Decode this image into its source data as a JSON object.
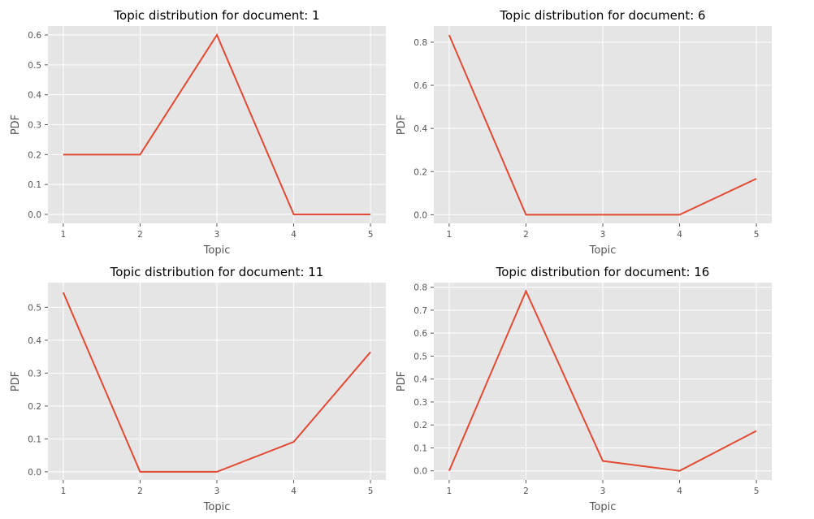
{
  "chart_data": [
    {
      "type": "line",
      "title": "Topic distribution for document: 1",
      "xlabel": "Topic",
      "ylabel": "PDF",
      "x": [
        1,
        2,
        3,
        4,
        5
      ],
      "xticks": [
        "1",
        "2",
        "3",
        "4",
        "5"
      ],
      "ylim": [
        -0.03,
        0.63
      ],
      "yticks": [
        "0.0",
        "0.1",
        "0.2",
        "0.3",
        "0.4",
        "0.5",
        "0.6"
      ],
      "series": [
        {
          "values": [
            0.2,
            0.2,
            0.6,
            0.0,
            0.0
          ]
        }
      ],
      "grid": true,
      "line_color": "#E24A33",
      "background": "#E5E5E5"
    },
    {
      "type": "line",
      "title": "Topic distribution for document: 6",
      "xlabel": "Topic",
      "ylabel": "PDF",
      "x": [
        1,
        2,
        3,
        4,
        5
      ],
      "xticks": [
        "1",
        "2",
        "3",
        "4",
        "5"
      ],
      "ylim": [
        -0.04,
        0.875
      ],
      "yticks": [
        "0.0",
        "0.2",
        "0.4",
        "0.6",
        "0.8"
      ],
      "series": [
        {
          "values": [
            0.833,
            0.0,
            0.0,
            0.0,
            0.167
          ]
        }
      ],
      "grid": true,
      "line_color": "#E24A33",
      "background": "#E5E5E5"
    },
    {
      "type": "line",
      "title": "Topic distribution for document: 11",
      "xlabel": "Topic",
      "ylabel": "PDF",
      "x": [
        1,
        2,
        3,
        4,
        5
      ],
      "xticks": [
        "1",
        "2",
        "3",
        "4",
        "5"
      ],
      "ylim": [
        -0.025,
        0.575
      ],
      "yticks": [
        "0.0",
        "0.1",
        "0.2",
        "0.3",
        "0.4",
        "0.5"
      ],
      "series": [
        {
          "values": [
            0.545,
            0.0,
            0.0,
            0.091,
            0.364
          ]
        }
      ],
      "grid": true,
      "line_color": "#E24A33",
      "background": "#E5E5E5"
    },
    {
      "type": "line",
      "title": "Topic distribution for document: 16",
      "xlabel": "Topic",
      "ylabel": "PDF",
      "x": [
        1,
        2,
        3,
        4,
        5
      ],
      "xticks": [
        "1",
        "2",
        "3",
        "4",
        "5"
      ],
      "ylim": [
        -0.04,
        0.82
      ],
      "yticks": [
        "0.0",
        "0.1",
        "0.2",
        "0.3",
        "0.4",
        "0.5",
        "0.6",
        "0.7",
        "0.8"
      ],
      "series": [
        {
          "values": [
            0.0,
            0.783,
            0.043,
            0.0,
            0.174
          ]
        }
      ],
      "grid": true,
      "line_color": "#E24A33",
      "background": "#E5E5E5"
    }
  ]
}
